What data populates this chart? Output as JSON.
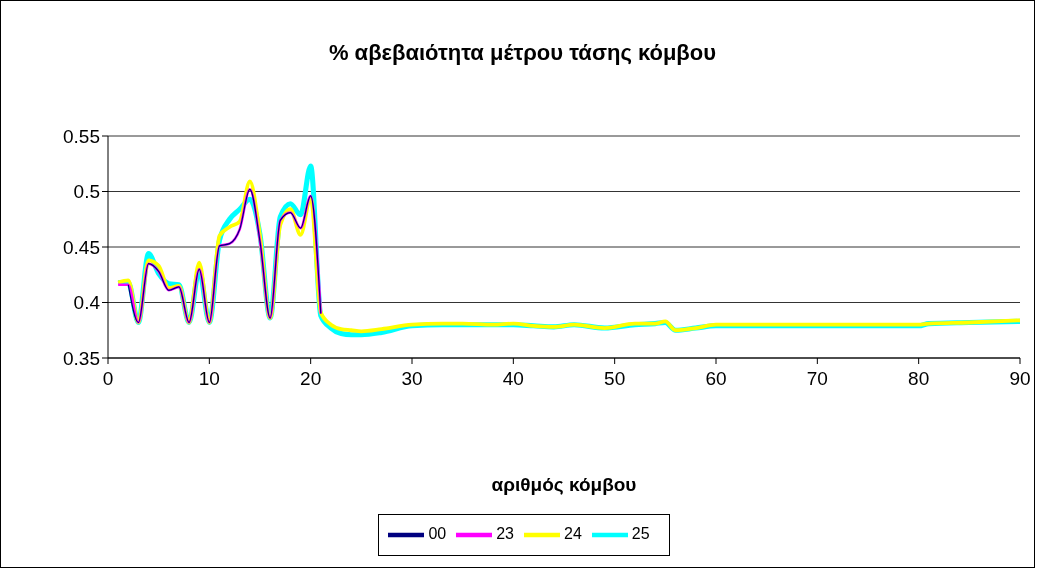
{
  "chart_data": {
    "type": "line",
    "title": "% αβεβαιότητα μέτρου τάσης κόμβου",
    "xlabel": "αριθμός κόμβου",
    "x": [
      1,
      2,
      3,
      4,
      5,
      6,
      7,
      8,
      9,
      10,
      11,
      12,
      13,
      14,
      15,
      16,
      17,
      18,
      19,
      20,
      21,
      22,
      23,
      24,
      25,
      27,
      30,
      33,
      35,
      38,
      40,
      42,
      44,
      46,
      49,
      52,
      54,
      55,
      56,
      58,
      60,
      65,
      70,
      75,
      80,
      81,
      85,
      90
    ],
    "series": [
      {
        "name": "00",
        "color": "#000080",
        "values": [
          null,
          0.416,
          0.382,
          0.435,
          0.428,
          0.411,
          0.414,
          0.382,
          0.43,
          0.382,
          0.451,
          0.453,
          0.466,
          0.502,
          0.455,
          0.386,
          0.474,
          0.481,
          0.467,
          0.496,
          0.39,
          null,
          null,
          null,
          null,
          null,
          null,
          null,
          null,
          null,
          null,
          null,
          null,
          null,
          null,
          null,
          null,
          null,
          null,
          null,
          null,
          null,
          null,
          null,
          null,
          null,
          null,
          null
        ]
      },
      {
        "name": "23",
        "color": "#ff00ff",
        "values": [
          0.416,
          0.416,
          0.382,
          0.435,
          0.428,
          0.411,
          0.414,
          0.382,
          0.43,
          0.382,
          0.451,
          0.453,
          0.466,
          0.502,
          0.455,
          0.386,
          0.474,
          0.481,
          0.467,
          0.496,
          0.39,
          null,
          null,
          null,
          null,
          null,
          null,
          null,
          null,
          null,
          null,
          null,
          null,
          null,
          null,
          null,
          null,
          null,
          null,
          null,
          null,
          null,
          null,
          null,
          null,
          null,
          null,
          null
        ]
      },
      {
        "name": "24",
        "color": "#ffff00",
        "values": [
          0.418,
          0.42,
          0.382,
          0.438,
          0.433,
          0.413,
          0.415,
          0.382,
          0.436,
          0.382,
          0.46,
          0.468,
          0.473,
          0.509,
          0.46,
          0.386,
          0.47,
          0.484,
          0.461,
          0.494,
          0.391,
          0.38,
          0.376,
          0.375,
          0.374,
          0.376,
          0.38,
          0.381,
          0.381,
          0.38,
          0.381,
          0.379,
          0.378,
          0.38,
          0.377,
          0.381,
          0.381,
          0.383,
          0.375,
          0.377,
          0.38,
          0.38,
          0.38,
          0.38,
          0.38,
          0.381,
          0.382,
          0.384
        ]
      },
      {
        "name": "25",
        "color": "#00ffff",
        "values": [
          0.418,
          0.418,
          0.382,
          0.444,
          0.426,
          0.417,
          0.416,
          0.382,
          0.429,
          0.382,
          0.456,
          0.475,
          0.484,
          0.493,
          0.461,
          0.386,
          0.477,
          0.489,
          0.479,
          0.523,
          0.388,
          0.377,
          0.372,
          0.371,
          0.371,
          0.373,
          0.379,
          0.38,
          0.38,
          0.38,
          0.38,
          0.379,
          0.378,
          0.38,
          0.377,
          0.38,
          0.381,
          0.382,
          0.375,
          0.377,
          0.379,
          0.379,
          0.379,
          0.379,
          0.379,
          0.381,
          0.382,
          0.383
        ]
      }
    ],
    "xlim": [
      0,
      90
    ],
    "xticks": [
      0,
      10,
      20,
      30,
      40,
      50,
      60,
      70,
      80,
      90
    ],
    "ylim": [
      0.35,
      0.55
    ],
    "yticks": [
      0.35,
      0.4,
      0.45,
      0.5,
      0.55
    ],
    "grid": "y",
    "legend": "bottom",
    "marker": "none",
    "line_style": "solid"
  }
}
